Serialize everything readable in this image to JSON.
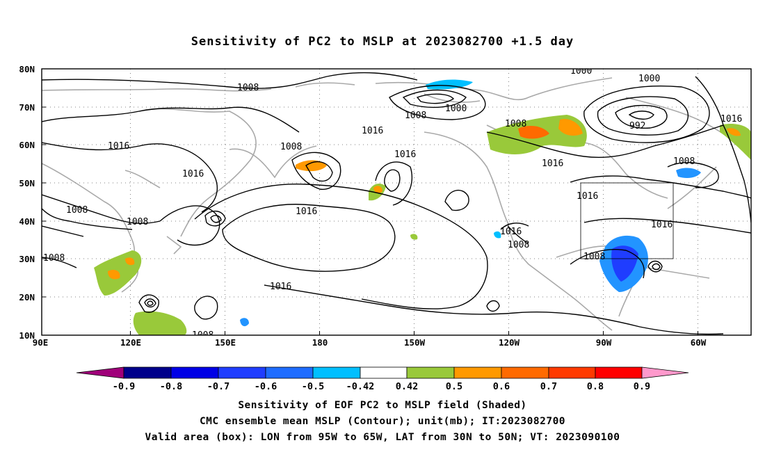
{
  "title": "Sensitivity of PC2 to MSLP at 2023082700 +1.5 day",
  "map": {
    "lon_labels": [
      "90E",
      "120E",
      "150E",
      "180",
      "150W",
      "120W",
      "90W",
      "60W"
    ],
    "lat_labels": [
      "80N",
      "70N",
      "60N",
      "50N",
      "40N",
      "30N",
      "20N",
      "10N"
    ],
    "isobar_labels": [
      "1008",
      "1000",
      "1008",
      "1000",
      "992",
      "1000",
      "1008",
      "1016",
      "1016",
      "1016",
      "1008",
      "1016",
      "1008",
      "1016",
      "1016",
      "1008",
      "1016",
      "1016",
      "1008",
      "1016",
      "1016",
      "1008",
      "1008",
      "1008",
      "1016",
      "1008"
    ],
    "valid_box": {
      "lon_from": "95W",
      "lon_to": "65W",
      "lat_from": "30N",
      "lat_to": "50N"
    }
  },
  "colorbar": {
    "labels": [
      "-0.9",
      "-0.8",
      "-0.7",
      "-0.6",
      "-0.5",
      "-0.42",
      "0.42",
      "0.5",
      "0.6",
      "0.7",
      "0.8",
      "0.9"
    ],
    "colors": [
      "#a0007a",
      "#00008b",
      "#0000e6",
      "#1f3dff",
      "#1e6cff",
      "#2294ff",
      "#00bfff",
      "#ffffff",
      "#99c93a",
      "#ff9900",
      "#ff6a00",
      "#ff3a00",
      "#ff0000",
      "#ff99cc"
    ]
  },
  "captions": [
    "Sensitivity of EOF PC2 to MSLP field (Shaded)",
    "CMC ensemble mean MSLP (Contour); unit(mb); IT:2023082700",
    "Valid area (box): LON from 95W to 65W, LAT from 30N to 50N; VT: 2023090100"
  ]
}
